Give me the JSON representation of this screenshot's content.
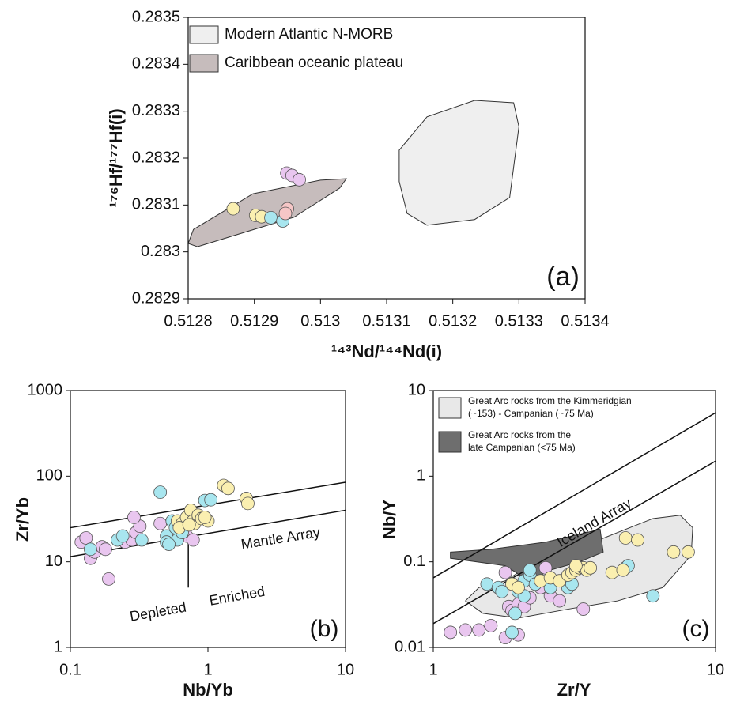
{
  "chart_data": [
    {
      "type": "scatter",
      "x_label": "¹⁴³Nd/¹⁴⁴Nd(i)",
      "y_label": "¹⁷⁶Hf/¹⁷⁷Hf(i)",
      "panel_label": "(a)",
      "xlim": [
        0.5128,
        0.5134
      ],
      "xticks": [
        0.5128,
        0.5129,
        0.513,
        0.5131,
        0.5132,
        0.5133,
        0.5134
      ],
      "ylim": [
        0.2829,
        0.2835
      ],
      "yticks": [
        0.2829,
        0.283,
        0.2831,
        0.2832,
        0.2833,
        0.2834,
        0.2835
      ],
      "fields": [
        {
          "name": [
            "Modern Atlantic N-MORB"
          ],
          "color": "#efefef",
          "x": [
            0.513119,
            0.513161,
            0.513233,
            0.513292,
            0.5133,
            0.513286,
            0.513233,
            0.513161,
            0.513131,
            0.513119
          ],
          "y": [
            0.283217,
            0.283288,
            0.283323,
            0.283318,
            0.283267,
            0.283116,
            0.283069,
            0.283057,
            0.283082,
            0.28315
          ]
        },
        {
          "name": [
            "Caribbean oceanic plateau"
          ],
          "color": "#c6bcbc",
          "x": [
            0.5128,
            0.512808,
            0.512898,
            0.513,
            0.513039,
            0.513029,
            0.51296,
            0.512814
          ],
          "y": [
            0.283018,
            0.283048,
            0.283124,
            0.283153,
            0.283156,
            0.283136,
            0.283074,
            0.283011
          ]
        }
      ],
      "series": [
        {
          "color": "#faefb0",
          "x": [
            0.512868,
            0.512902,
            0.512911
          ],
          "y": [
            0.283092,
            0.283078,
            0.283075
          ]
        },
        {
          "color": "#a8e6ef",
          "x": [
            0.512925,
            0.512943
          ],
          "y": [
            0.283073,
            0.283066
          ]
        },
        {
          "color": "#e9c6ef",
          "x": [
            0.512949,
            0.512957,
            0.512968
          ],
          "y": [
            0.283168,
            0.283163,
            0.283154
          ]
        },
        {
          "color": "#f5c6c6",
          "x": [
            0.51295,
            0.512947
          ],
          "y": [
            0.283092,
            0.283082
          ]
        }
      ]
    },
    {
      "type": "scatter",
      "x_label": "Nb/Yb",
      "y_label": "Zr/Yb",
      "panel_label": "(b)",
      "xscale": "log",
      "yscale": "log",
      "xlim": [
        0.1,
        10
      ],
      "xticks": [
        0.1,
        1,
        10
      ],
      "ylim": [
        1,
        1000
      ],
      "yticks": [
        1,
        10,
        100,
        1000
      ],
      "annotations": [
        "Mantle Array",
        "Depleted",
        "Enriched"
      ],
      "lines": [
        {
          "x": [
            0.1,
            10
          ],
          "y": [
            25,
            85
          ]
        },
        {
          "x": [
            0.1,
            10
          ],
          "y": [
            11.5,
            40
          ]
        },
        {
          "x": [
            0.72,
            0.72
          ],
          "y": [
            20,
            5
          ]
        }
      ],
      "series": [
        {
          "color": "#e9c6ef",
          "x": [
            0.12,
            0.13,
            0.14,
            0.15,
            0.17,
            0.19,
            0.25,
            0.28,
            0.3,
            0.32,
            0.29,
            0.45,
            0.7,
            0.78,
            0.18
          ],
          "y": [
            17,
            19,
            11,
            13,
            15,
            6.3,
            17,
            18,
            22,
            26,
            33,
            28,
            20,
            18,
            14
          ]
        },
        {
          "color": "#a8e6ef",
          "x": [
            0.14,
            0.22,
            0.24,
            0.33,
            0.45,
            0.5,
            0.5,
            0.55,
            0.6,
            0.65,
            0.95,
            1.05,
            0.52,
            0.58
          ],
          "y": [
            14,
            18,
            20,
            18,
            65,
            20,
            17,
            30,
            18,
            22,
            52,
            53,
            16,
            25
          ]
        },
        {
          "color": "#faefb0",
          "x": [
            0.6,
            0.65,
            0.7,
            0.75,
            0.78,
            0.8,
            0.85,
            0.9,
            1.0,
            1.3,
            1.4,
            1.9,
            1.95,
            0.62,
            0.73,
            0.95
          ],
          "y": [
            30,
            28,
            33,
            40,
            30,
            28,
            35,
            32,
            30,
            78,
            72,
            55,
            48,
            25,
            27,
            33
          ]
        }
      ]
    },
    {
      "type": "scatter",
      "x_label": "Zr/Y",
      "y_label": "Nb/Y",
      "panel_label": "(c)",
      "xscale": "log",
      "yscale": "log",
      "xlim": [
        1,
        10
      ],
      "xticks": [
        1,
        10
      ],
      "ylim": [
        0.01,
        10
      ],
      "yticks": [
        0.01,
        0.1,
        1,
        10
      ],
      "annotations": [
        "Iceland Array"
      ],
      "lines": [
        {
          "x": [
            1,
            10
          ],
          "y": [
            0.065,
            5.5
          ]
        },
        {
          "x": [
            1,
            10
          ],
          "y": [
            0.019,
            1.5
          ]
        }
      ],
      "fields": [
        {
          "name": [
            "Great Arc rocks from the Kimmeridgian",
            "(~153) - Campanian (~75 Ma)"
          ],
          "color": "#e8e8e8",
          "x": [
            1.3,
            1.45,
            1.8,
            2.3,
            3.2,
            4.5,
            6,
            7.5,
            8.3,
            8.2,
            6.5,
            4.5,
            3,
            2,
            1.5
          ],
          "y": [
            0.035,
            0.05,
            0.06,
            0.1,
            0.14,
            0.22,
            0.32,
            0.35,
            0.25,
            0.12,
            0.05,
            0.035,
            0.028,
            0.022,
            0.025
          ]
        },
        {
          "name": [
            "Great Arc rocks from the",
            "late Campanian (<75 Ma)"
          ],
          "color": "#6e6e6e",
          "x": [
            1.15,
            1.6,
            2.5,
            3.5,
            3.9,
            4.0,
            3.3,
            2.6,
            2.2,
            2.1,
            1.8,
            1.15
          ],
          "y": [
            0.13,
            0.14,
            0.17,
            0.22,
            0.24,
            0.13,
            0.1,
            0.08,
            0.06,
            0.065,
            0.09,
            0.11
          ]
        }
      ],
      "series": [
        {
          "color": "#e9c6ef",
          "x": [
            1.15,
            1.3,
            1.45,
            1.6,
            1.8,
            2.0,
            1.8,
            1.85,
            1.9,
            2.0,
            2.1,
            2.4,
            2.6,
            2.8,
            2.5,
            3.4,
            2.2
          ],
          "y": [
            0.015,
            0.016,
            0.016,
            0.018,
            0.013,
            0.014,
            0.075,
            0.03,
            0.027,
            0.032,
            0.03,
            0.05,
            0.04,
            0.035,
            0.085,
            0.028,
            0.038
          ]
        },
        {
          "color": "#a8e6ef",
          "x": [
            1.55,
            1.7,
            1.75,
            1.9,
            1.95,
            2.0,
            2.1,
            2.2,
            2.2,
            2.3,
            2.6,
            3.0,
            3.1,
            4.8,
            4.9,
            6.0,
            2.1
          ],
          "y": [
            0.055,
            0.05,
            0.045,
            0.015,
            0.025,
            0.045,
            0.06,
            0.07,
            0.08,
            0.055,
            0.05,
            0.05,
            0.055,
            0.085,
            0.09,
            0.04,
            0.04
          ]
        },
        {
          "color": "#faefb0",
          "x": [
            1.9,
            2.0,
            2.4,
            2.6,
            2.8,
            3.0,
            3.1,
            3.2,
            3.3,
            3.4,
            3.5,
            3.6,
            4.3,
            4.7,
            4.8,
            5.3,
            7.1,
            8.0,
            3.2
          ],
          "y": [
            0.055,
            0.05,
            0.06,
            0.065,
            0.06,
            0.07,
            0.075,
            0.08,
            0.085,
            0.085,
            0.08,
            0.085,
            0.075,
            0.08,
            0.19,
            0.18,
            0.13,
            0.13,
            0.09
          ]
        }
      ]
    }
  ]
}
